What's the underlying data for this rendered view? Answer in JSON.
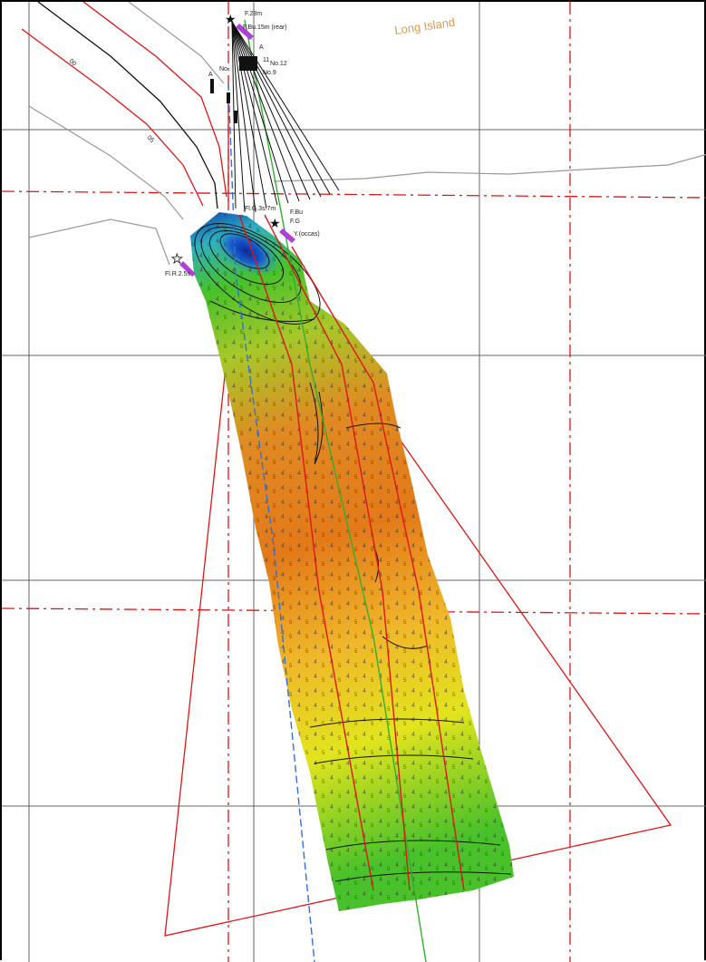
{
  "place_label": "Long Island",
  "beacons": {
    "top_light": "F.28m",
    "rear_light": "F.Bu.15m (rear)",
    "front_light_1": "F.Bu",
    "front_light_2": "F.G",
    "front_light_3": "Y.(occas)",
    "channel_light": "Fl.G.3s.7m",
    "left_light": "Fl.R.2.5s"
  },
  "berth_labels": {
    "no12": "No.12",
    "no9": "No.9",
    "no11": "11",
    "a1": "A",
    "a2": "A",
    "no_left": "No"
  },
  "depth_labels": [
    "00",
    "05"
  ],
  "colors": {
    "deep": "#0a3fb0",
    "mid_deep": "#2fb0c0",
    "shallow_green": "#48c12a",
    "yellow": "#e2e41e",
    "orange": "#e37a1a",
    "grid_line": "#555555",
    "boundary_red": "#e01515",
    "centre_green": "#2fb02f",
    "blue_line": "#2f6fe0"
  }
}
